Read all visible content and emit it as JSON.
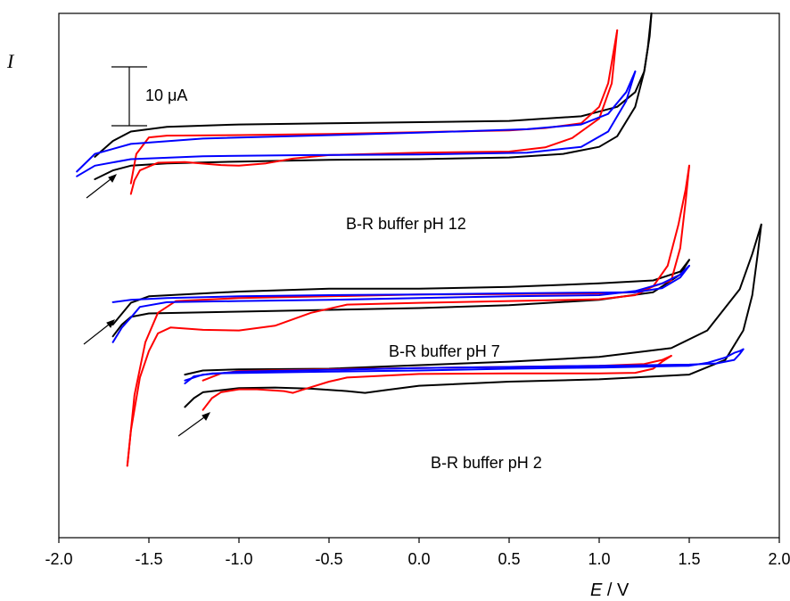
{
  "chart_data": {
    "type": "line",
    "xlabel": {
      "var": "E",
      "unit": " / V"
    },
    "ylabel": "I",
    "xlim": [
      -2.0,
      2.0
    ],
    "xticks": [
      "-2.0",
      "-1.5",
      "-1.0",
      "-0.5",
      "0.0",
      "0.5",
      "1.0",
      "1.5",
      "2.0"
    ],
    "scale_bar": "10 μA",
    "grid": false,
    "colors": {
      "black": "#000000",
      "red": "#ff0000",
      "blue": "#0000ff"
    },
    "annotations": [
      {
        "text": "B-R buffer pH 12"
      },
      {
        "text": "B-R buffer pH 7"
      },
      {
        "text": "B-R buffer pH 2"
      }
    ],
    "series": [
      {
        "color": "#000000",
        "group": "pH 12",
        "points": [
          [
            -1.8,
            -10.3
          ],
          [
            -1.7,
            -8.8
          ],
          [
            -1.6,
            -8.0
          ],
          [
            -1.4,
            -7.6
          ],
          [
            -1.0,
            -7.3
          ],
          [
            -0.5,
            -7.0
          ],
          [
            0.0,
            -6.9
          ],
          [
            0.5,
            -6.6
          ],
          [
            0.8,
            -6.0
          ],
          [
            1.0,
            -4.8
          ],
          [
            1.1,
            -3.0
          ],
          [
            1.2,
            2.0
          ],
          [
            1.25,
            8.0
          ],
          [
            1.28,
            14.0
          ],
          [
            1.29,
            20.0
          ]
        ],
        "ret": [
          [
            1.29,
            20.0
          ],
          [
            1.27,
            12.0
          ],
          [
            1.25,
            8.0
          ],
          [
            1.2,
            4.5
          ],
          [
            1.1,
            2.0
          ],
          [
            0.9,
            0.4
          ],
          [
            0.5,
            -0.4
          ],
          [
            0.0,
            -0.6
          ],
          [
            -0.5,
            -0.8
          ],
          [
            -1.0,
            -1.0
          ],
          [
            -1.4,
            -1.4
          ],
          [
            -1.6,
            -2.2
          ],
          [
            -1.7,
            -3.8
          ],
          [
            -1.8,
            -6.5
          ]
        ]
      },
      {
        "color": "#ff0000",
        "group": "pH 12",
        "points": [
          [
            -1.6,
            -12.8
          ],
          [
            -1.58,
            -10.5
          ],
          [
            -1.55,
            -8.8
          ],
          [
            -1.45,
            -7.5
          ],
          [
            -1.3,
            -7.4
          ],
          [
            -1.1,
            -7.9
          ],
          [
            -1.0,
            -8.0
          ],
          [
            -0.85,
            -7.6
          ],
          [
            -0.7,
            -6.8
          ],
          [
            -0.5,
            -6.2
          ],
          [
            0.0,
            -5.8
          ],
          [
            0.5,
            -5.6
          ],
          [
            0.7,
            -4.9
          ],
          [
            0.85,
            -3.3
          ],
          [
            1.0,
            0.0
          ],
          [
            1.07,
            6.0
          ],
          [
            1.1,
            15.0
          ]
        ],
        "ret": [
          [
            1.1,
            15.0
          ],
          [
            1.05,
            6.0
          ],
          [
            1.0,
            2.0
          ],
          [
            0.9,
            -0.8
          ],
          [
            0.7,
            -1.6
          ],
          [
            0.5,
            -2.0
          ],
          [
            0.0,
            -2.3
          ],
          [
            -0.5,
            -2.6
          ],
          [
            -1.0,
            -2.8
          ],
          [
            -1.4,
            -2.9
          ],
          [
            -1.5,
            -3.2
          ],
          [
            -1.57,
            -6.0
          ],
          [
            -1.6,
            -11.0
          ]
        ]
      },
      {
        "color": "#0000ff",
        "group": "pH 12",
        "points": [
          [
            -1.9,
            -9.8
          ],
          [
            -1.8,
            -8.0
          ],
          [
            -1.6,
            -6.9
          ],
          [
            -1.2,
            -6.4
          ],
          [
            -0.6,
            -6.2
          ],
          [
            0.0,
            -6.1
          ],
          [
            0.6,
            -5.8
          ],
          [
            0.9,
            -4.8
          ],
          [
            1.05,
            -2.2
          ],
          [
            1.15,
            3.0
          ],
          [
            1.2,
            8.0
          ]
        ],
        "ret": [
          [
            1.2,
            8.0
          ],
          [
            1.15,
            4.5
          ],
          [
            1.05,
            0.8
          ],
          [
            0.9,
            -1.0
          ],
          [
            0.6,
            -1.8
          ],
          [
            0.0,
            -2.4
          ],
          [
            -0.6,
            -2.9
          ],
          [
            -1.2,
            -3.4
          ],
          [
            -1.6,
            -4.3
          ],
          [
            -1.8,
            -6.0
          ],
          [
            -1.9,
            -9.0
          ]
        ]
      },
      {
        "color": "#000000",
        "group": "pH 7",
        "points": [
          [
            -1.7,
            -37.0
          ],
          [
            -1.65,
            -35.0
          ],
          [
            -1.6,
            -33.7
          ],
          [
            -1.5,
            -33.1
          ],
          [
            -1.0,
            -32.8
          ],
          [
            -0.5,
            -32.5
          ],
          [
            0.0,
            -32.2
          ],
          [
            0.5,
            -31.7
          ],
          [
            1.0,
            -30.8
          ],
          [
            1.3,
            -29.5
          ],
          [
            1.45,
            -26.5
          ],
          [
            1.5,
            -24.0
          ]
        ],
        "ret": [
          [
            1.5,
            -24.0
          ],
          [
            1.45,
            -26.0
          ],
          [
            1.3,
            -27.5
          ],
          [
            1.0,
            -28.0
          ],
          [
            0.5,
            -28.6
          ],
          [
            0.0,
            -28.9
          ],
          [
            -0.5,
            -28.9
          ],
          [
            -1.0,
            -29.4
          ],
          [
            -1.5,
            -30.2
          ],
          [
            -1.6,
            -31.3
          ],
          [
            -1.7,
            -35.0
          ]
        ]
      },
      {
        "color": "#ff0000",
        "group": "pH 7",
        "points": [
          [
            -1.62,
            -59.0
          ],
          [
            -1.6,
            -53.0
          ],
          [
            -1.55,
            -44.0
          ],
          [
            -1.5,
            -39.5
          ],
          [
            -1.45,
            -36.5
          ],
          [
            -1.38,
            -35.5
          ],
          [
            -1.2,
            -35.9
          ],
          [
            -1.0,
            -36.0
          ],
          [
            -0.8,
            -35.2
          ],
          [
            -0.6,
            -33.0
          ],
          [
            -0.4,
            -31.6
          ],
          [
            0.0,
            -31.3
          ],
          [
            0.5,
            -31.0
          ],
          [
            1.0,
            -30.7
          ],
          [
            1.2,
            -30.0
          ],
          [
            1.3,
            -28.5
          ],
          [
            1.38,
            -25.0
          ],
          [
            1.44,
            -18.0
          ],
          [
            1.48,
            -12.0
          ],
          [
            1.5,
            -8.0
          ]
        ],
        "ret": [
          [
            1.5,
            -8.0
          ],
          [
            1.48,
            -14.0
          ],
          [
            1.45,
            -22.0
          ],
          [
            1.4,
            -27.5
          ],
          [
            1.2,
            -29.5
          ],
          [
            1.0,
            -29.7
          ],
          [
            0.5,
            -29.8
          ],
          [
            0.0,
            -29.9
          ],
          [
            -0.5,
            -30.2
          ],
          [
            -1.0,
            -30.5
          ],
          [
            -1.35,
            -31.0
          ],
          [
            -1.45,
            -33.0
          ],
          [
            -1.52,
            -38.0
          ],
          [
            -1.58,
            -47.0
          ],
          [
            -1.62,
            -59.0
          ]
        ]
      },
      {
        "color": "#0000ff",
        "group": "pH 7",
        "points": [
          [
            -1.7,
            -38.0
          ],
          [
            -1.65,
            -35.5
          ],
          [
            -1.6,
            -33.8
          ],
          [
            -1.55,
            -32.0
          ],
          [
            -1.4,
            -31.2
          ],
          [
            -1.0,
            -31.0
          ],
          [
            -0.5,
            -30.8
          ],
          [
            0.0,
            -30.5
          ],
          [
            0.5,
            -30.2
          ],
          [
            1.0,
            -30.0
          ],
          [
            1.2,
            -29.3
          ],
          [
            1.35,
            -28.0
          ],
          [
            1.45,
            -26.5
          ],
          [
            1.5,
            -25.0
          ]
        ],
        "ret": [
          [
            1.5,
            -25.0
          ],
          [
            1.45,
            -27.0
          ],
          [
            1.35,
            -28.8
          ],
          [
            1.2,
            -29.5
          ],
          [
            0.5,
            -29.7
          ],
          [
            0.0,
            -29.9
          ],
          [
            -0.5,
            -30.0
          ],
          [
            -1.0,
            -30.2
          ],
          [
            -1.4,
            -30.5
          ],
          [
            -1.6,
            -30.8
          ],
          [
            -1.7,
            -31.2
          ]
        ]
      },
      {
        "color": "#000000",
        "group": "pH 2",
        "points": [
          [
            -1.3,
            -49.0
          ],
          [
            -1.25,
            -47.5
          ],
          [
            -1.2,
            -46.5
          ],
          [
            -1.0,
            -45.8
          ],
          [
            -0.8,
            -45.7
          ],
          [
            -0.6,
            -45.9
          ],
          [
            -0.4,
            -46.3
          ],
          [
            -0.3,
            -46.6
          ],
          [
            -0.2,
            -46.2
          ],
          [
            0.0,
            -45.4
          ],
          [
            0.5,
            -44.7
          ],
          [
            1.0,
            -44.3
          ],
          [
            1.5,
            -43.5
          ],
          [
            1.7,
            -41.0
          ],
          [
            1.8,
            -36.0
          ],
          [
            1.85,
            -30.0
          ],
          [
            1.88,
            -23.0
          ],
          [
            1.9,
            -18.0
          ]
        ],
        "ret": [
          [
            1.9,
            -18.0
          ],
          [
            1.85,
            -23.0
          ],
          [
            1.78,
            -29.0
          ],
          [
            1.6,
            -36.0
          ],
          [
            1.4,
            -39.0
          ],
          [
            1.0,
            -40.5
          ],
          [
            0.5,
            -41.3
          ],
          [
            0.0,
            -41.9
          ],
          [
            -0.5,
            -42.5
          ],
          [
            -1.0,
            -42.6
          ],
          [
            -1.2,
            -42.8
          ],
          [
            -1.3,
            -43.5
          ]
        ]
      },
      {
        "color": "#ff0000",
        "group": "pH 2",
        "points": [
          [
            -1.2,
            -49.5
          ],
          [
            -1.15,
            -47.5
          ],
          [
            -1.1,
            -46.5
          ],
          [
            -1.0,
            -46.0
          ],
          [
            -0.9,
            -46.0
          ],
          [
            -0.75,
            -46.3
          ],
          [
            -0.7,
            -46.6
          ],
          [
            -0.65,
            -46.1
          ],
          [
            -0.5,
            -44.7
          ],
          [
            -0.4,
            -44.0
          ],
          [
            0.0,
            -43.4
          ],
          [
            0.5,
            -43.3
          ],
          [
            1.0,
            -43.3
          ],
          [
            1.2,
            -43.2
          ],
          [
            1.3,
            -42.5
          ],
          [
            1.35,
            -41.3
          ],
          [
            1.4,
            -40.3
          ]
        ],
        "ret": [
          [
            1.4,
            -40.3
          ],
          [
            1.35,
            -41.0
          ],
          [
            1.25,
            -41.7
          ],
          [
            1.0,
            -42.0
          ],
          [
            0.5,
            -42.2
          ],
          [
            0.0,
            -42.4
          ],
          [
            -0.5,
            -42.6
          ],
          [
            -1.0,
            -42.9
          ],
          [
            -1.1,
            -43.3
          ],
          [
            -1.2,
            -44.5
          ]
        ]
      },
      {
        "color": "#0000ff",
        "group": "pH 2",
        "points": [
          [
            -1.3,
            -45.0
          ],
          [
            -1.25,
            -43.8
          ],
          [
            -1.15,
            -43.3
          ],
          [
            -0.5,
            -43.0
          ],
          [
            0.0,
            -42.8
          ],
          [
            0.5,
            -42.5
          ],
          [
            1.0,
            -42.3
          ],
          [
            1.5,
            -42.0
          ],
          [
            1.6,
            -41.5
          ],
          [
            1.7,
            -40.6
          ],
          [
            1.75,
            -39.8
          ],
          [
            1.78,
            -39.5
          ],
          [
            1.8,
            -39.2
          ]
        ],
        "ret": [
          [
            1.8,
            -39.2
          ],
          [
            1.78,
            -40.0
          ],
          [
            1.75,
            -41.0
          ],
          [
            1.65,
            -41.6
          ],
          [
            1.5,
            -41.8
          ],
          [
            1.0,
            -42.0
          ],
          [
            0.5,
            -42.2
          ],
          [
            0.0,
            -42.4
          ],
          [
            -0.5,
            -42.7
          ],
          [
            -1.0,
            -43.0
          ],
          [
            -1.2,
            -43.5
          ],
          [
            -1.3,
            -44.5
          ]
        ]
      }
    ]
  }
}
